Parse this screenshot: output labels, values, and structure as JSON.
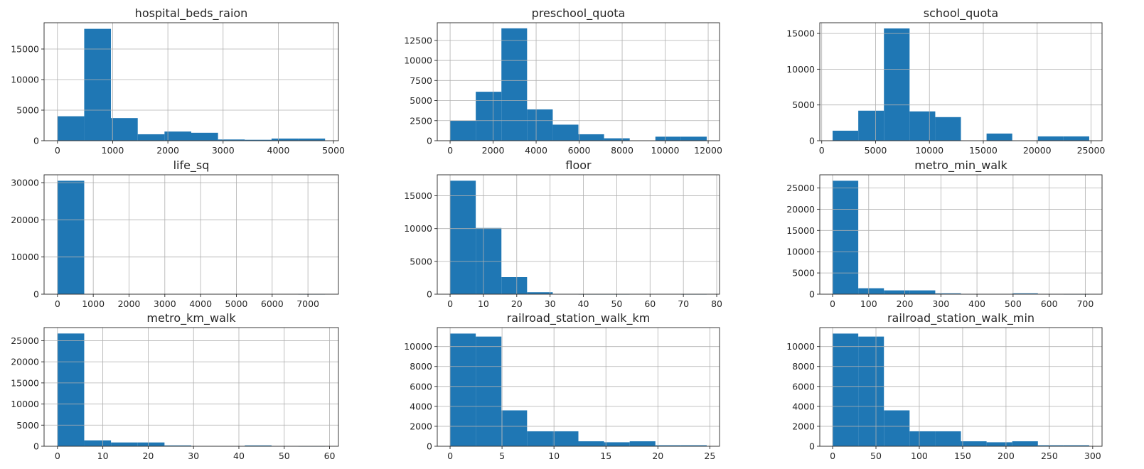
{
  "colors": {
    "bar": "#1f77b4",
    "grid": "#b0b0b0",
    "axis": "#262626"
  },
  "chart_data": [
    {
      "type": "bar",
      "title": "hospital_beds_raion",
      "bin_edges": [
        0,
        484.7,
        969.4,
        1454.1,
        1938.8,
        2423.5,
        2908.2,
        3392.9,
        3877.6,
        4362.3,
        4847
      ],
      "values": [
        4000,
        18300,
        3700,
        1050,
        1500,
        1300,
        200,
        150,
        350,
        350
      ],
      "xlim": [
        -242,
        5089
      ],
      "ylim": [
        0,
        19300
      ],
      "xticks": [
        0,
        1000,
        2000,
        3000,
        4000,
        5000
      ],
      "xtick_labels": [
        "0",
        "1000",
        "2000",
        "3000",
        "4000",
        "5000"
      ],
      "yticks": [
        0,
        5000,
        10000,
        15000
      ],
      "ytick_labels": [
        "0",
        "5000",
        "10000",
        "15000"
      ],
      "grid": true
    },
    {
      "type": "bar",
      "title": "preschool_quota",
      "bin_edges": [
        0,
        1193.1,
        2386.2,
        3579.3,
        4772.4,
        5965.5,
        7158.6,
        8351.7,
        9544.8,
        10737.9,
        11931
      ],
      "values": [
        2500,
        6100,
        14000,
        3900,
        2000,
        800,
        300,
        0,
        500,
        500
      ],
      "xlim": [
        -597,
        12528
      ],
      "ylim": [
        0,
        14700
      ],
      "xticks": [
        0,
        2000,
        4000,
        6000,
        8000,
        10000,
        12000
      ],
      "xtick_labels": [
        "0",
        "2000",
        "4000",
        "6000",
        "8000",
        "10000",
        "12000"
      ],
      "yticks": [
        0,
        2500,
        5000,
        7500,
        10000,
        12500
      ],
      "ytick_labels": [
        "0",
        "2500",
        "5000",
        "7500",
        "10000",
        "12500"
      ],
      "grid": true
    },
    {
      "type": "bar",
      "title": "school_quota",
      "bin_edges": [
        1012,
        3394,
        5776,
        8158,
        10540,
        12922,
        15304,
        17686,
        20068,
        22450,
        24832
      ],
      "values": [
        1400,
        4200,
        15700,
        4100,
        3300,
        0,
        1000,
        0,
        600,
        600
      ],
      "xlim": [
        -179,
        26023
      ],
      "ylim": [
        0,
        16500
      ],
      "xticks": [
        0,
        5000,
        10000,
        15000,
        20000,
        25000
      ],
      "xtick_labels": [
        "0",
        "5000",
        "10000",
        "15000",
        "20000",
        "25000"
      ],
      "yticks": [
        0,
        5000,
        10000,
        15000
      ],
      "ytick_labels": [
        "0",
        "5000",
        "10000",
        "15000"
      ],
      "grid": true
    },
    {
      "type": "bar",
      "title": "life_sq",
      "bin_edges": [
        0,
        747.8,
        1495.6,
        2243.4,
        2991.2,
        3739,
        4486.8,
        5234.6,
        5982.4,
        6730.2,
        7478
      ],
      "values": [
        30500,
        0,
        0,
        0,
        0,
        0,
        0,
        0,
        0,
        10
      ],
      "xlim": [
        -374,
        7852
      ],
      "ylim": [
        0,
        32100
      ],
      "xticks": [
        0,
        1000,
        2000,
        3000,
        4000,
        5000,
        6000,
        7000
      ],
      "xtick_labels": [
        "0",
        "1000",
        "2000",
        "3000",
        "4000",
        "5000",
        "6000",
        "7000"
      ],
      "yticks": [
        0,
        10000,
        20000,
        30000
      ],
      "ytick_labels": [
        "0",
        "10000",
        "20000",
        "30000"
      ],
      "grid": true
    },
    {
      "type": "bar",
      "title": "floor",
      "bin_edges": [
        0,
        7.7,
        15.4,
        23.1,
        30.8,
        38.5,
        46.2,
        53.9,
        61.6,
        69.3,
        77
      ],
      "values": [
        17300,
        10100,
        2600,
        300,
        20,
        5,
        5,
        0,
        0,
        5
      ],
      "xlim": [
        -3.85,
        80.85
      ],
      "ylim": [
        0,
        18200
      ],
      "xticks": [
        0,
        10,
        20,
        30,
        40,
        50,
        60,
        70,
        80
      ],
      "xtick_labels": [
        "0",
        "10",
        "20",
        "30",
        "40",
        "50",
        "60",
        "70",
        "80"
      ],
      "yticks": [
        0,
        5000,
        10000,
        15000
      ],
      "ytick_labels": [
        "0",
        "5000",
        "10000",
        "15000"
      ],
      "grid": true
    },
    {
      "type": "bar",
      "title": "metro_min_walk",
      "bin_edges": [
        0,
        71.1,
        142.2,
        213.3,
        284.4,
        355.5,
        426.6,
        497.7,
        568.8,
        639.9,
        711
      ],
      "values": [
        26700,
        1400,
        900,
        900,
        200,
        50,
        30,
        200,
        20,
        10
      ],
      "xlim": [
        -35.5,
        746.5
      ],
      "ylim": [
        0,
        28100
      ],
      "xticks": [
        0,
        100,
        200,
        300,
        400,
        500,
        600,
        700
      ],
      "xtick_labels": [
        "0",
        "100",
        "200",
        "300",
        "400",
        "500",
        "600",
        "700"
      ],
      "yticks": [
        0,
        5000,
        10000,
        15000,
        20000,
        25000
      ],
      "ytick_labels": [
        "0",
        "5000",
        "10000",
        "15000",
        "20000",
        "25000"
      ],
      "grid": true
    },
    {
      "type": "bar",
      "title": "metro_km_walk",
      "bin_edges": [
        0,
        5.9,
        11.8,
        17.7,
        23.6,
        29.5,
        35.4,
        41.3,
        47.2,
        53.1,
        59
      ],
      "values": [
        26700,
        1400,
        900,
        900,
        200,
        50,
        30,
        200,
        20,
        10
      ],
      "xlim": [
        -2.95,
        61.95
      ],
      "ylim": [
        0,
        28100
      ],
      "xticks": [
        0,
        10,
        20,
        30,
        40,
        50,
        60
      ],
      "xtick_labels": [
        "0",
        "10",
        "20",
        "30",
        "40",
        "50",
        "60"
      ],
      "yticks": [
        0,
        5000,
        10000,
        15000,
        20000,
        25000
      ],
      "ytick_labels": [
        "0",
        "5000",
        "10000",
        "15000",
        "20000",
        "25000"
      ],
      "grid": true
    },
    {
      "type": "bar",
      "title": "railroad_station_walk_km",
      "bin_edges": [
        0,
        2.47,
        4.94,
        7.41,
        9.88,
        12.35,
        14.82,
        17.29,
        19.76,
        22.23,
        24.7
      ],
      "values": [
        11300,
        11000,
        3600,
        1500,
        1500,
        500,
        400,
        500,
        100,
        100
      ],
      "xlim": [
        -1.235,
        25.935
      ],
      "ylim": [
        0,
        11900
      ],
      "xticks": [
        0,
        5,
        10,
        15,
        20,
        25
      ],
      "xtick_labels": [
        "0",
        "5",
        "10",
        "15",
        "20",
        "25"
      ],
      "yticks": [
        0,
        2000,
        4000,
        6000,
        8000,
        10000
      ],
      "ytick_labels": [
        "0",
        "2000",
        "4000",
        "6000",
        "8000",
        "10000"
      ],
      "grid": true
    },
    {
      "type": "bar",
      "title": "railroad_station_walk_min",
      "bin_edges": [
        0,
        29.6,
        59.2,
        88.8,
        118.4,
        148,
        177.6,
        207.2,
        236.8,
        266.4,
        296
      ],
      "values": [
        11300,
        11000,
        3600,
        1500,
        1500,
        500,
        400,
        500,
        100,
        100
      ],
      "xlim": [
        -14.8,
        310.8
      ],
      "ylim": [
        0,
        11900
      ],
      "xticks": [
        0,
        50,
        100,
        150,
        200,
        250,
        300
      ],
      "xtick_labels": [
        "0",
        "50",
        "100",
        "150",
        "200",
        "250",
        "300"
      ],
      "yticks": [
        0,
        2000,
        4000,
        6000,
        8000,
        10000
      ],
      "ytick_labels": [
        "0",
        "2000",
        "4000",
        "6000",
        "8000",
        "10000"
      ],
      "grid": true
    }
  ]
}
